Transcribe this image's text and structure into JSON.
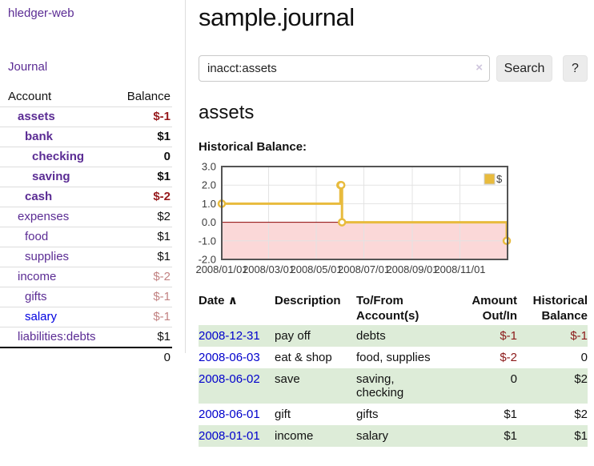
{
  "app": {
    "brand": "hledger-web"
  },
  "icons": {
    "sort_ascending": "∧",
    "clear_search": "×"
  },
  "colors": {
    "link_purple": "#5b2c94",
    "link_blue": "#0000e0",
    "register_date_blue": "#0000cc",
    "negative_strong": "#96191c",
    "negative_soft": "#c28282",
    "register_negative": "#8c1a1a",
    "row_alt_green": "#ddecd8",
    "chart_line_gold": "#e8bb3d",
    "chart_negative_region": "#fbd8d8",
    "chart_zero_line": "#8b0000"
  },
  "sidebar": {
    "nav_journal": "Journal",
    "accounts_table": {
      "headers": {
        "account": "Account",
        "balance": "Balance"
      },
      "rows": [
        {
          "name": "assets",
          "balance": "$-1",
          "level": 1
        },
        {
          "name": "bank",
          "balance": "$1",
          "level": 2
        },
        {
          "name": "checking",
          "balance": "0",
          "level": 3
        },
        {
          "name": "saving",
          "balance": "$1",
          "level": 3
        },
        {
          "name": "cash",
          "balance": "$-2",
          "level": 2
        },
        {
          "name": "expenses",
          "balance": "$2",
          "level": 1
        },
        {
          "name": "food",
          "balance": "$1",
          "level": 2
        },
        {
          "name": "supplies",
          "balance": "$1",
          "level": 2
        },
        {
          "name": "income",
          "balance": "$-2",
          "level": 1
        },
        {
          "name": "gifts",
          "balance": "$-1",
          "level": 2
        },
        {
          "name": "salary",
          "balance": "$-1",
          "level": 2
        },
        {
          "name": "liabilities:debts",
          "balance": "$1",
          "level": 1
        }
      ],
      "total": "0"
    }
  },
  "main": {
    "title": "sample.journal",
    "search": {
      "value": "inacct:assets",
      "search_button": "Search",
      "help_button": "?"
    },
    "account_heading": "assets",
    "section_label": "Historical Balance:",
    "register": {
      "headers": [
        "Date",
        "Description",
        "To/From Account(s)",
        "Amount Out/In",
        "Historical Balance"
      ],
      "rows": [
        {
          "date": "2008-12-31",
          "description": "pay off",
          "accounts": "debts",
          "amount": "$-1",
          "balance": "$-1"
        },
        {
          "date": "2008-06-03",
          "description": "eat & shop",
          "accounts": "food, supplies",
          "amount": "$-2",
          "balance": "0"
        },
        {
          "date": "2008-06-02",
          "description": "save",
          "accounts": "saving, checking",
          "amount": "0",
          "balance": "$2"
        },
        {
          "date": "2008-06-01",
          "description": "gift",
          "accounts": "gifts",
          "amount": "$1",
          "balance": "$2"
        },
        {
          "date": "2008-01-01",
          "description": "income",
          "accounts": "salary",
          "amount": "$1",
          "balance": "$1"
        }
      ]
    }
  },
  "chart_data": {
    "type": "line",
    "title": "Historical Balance",
    "series": [
      {
        "name": "$",
        "color": "#e8bb3d",
        "steps": true,
        "point_dates": [
          "2008-01-01",
          "2008-06-01",
          "2008-06-02",
          "2008-06-03",
          "2008-12-31"
        ],
        "points_x_days": [
          0,
          152,
          153,
          154,
          365
        ],
        "points_y": [
          1,
          2,
          2,
          0,
          -1
        ]
      }
    ],
    "x_ticks": [
      {
        "pos": 0,
        "label": "2008/01/01"
      },
      {
        "pos": 60,
        "label": "2008/03/01"
      },
      {
        "pos": 121,
        "label": "2008/05/01"
      },
      {
        "pos": 182,
        "label": "2008/07/01"
      },
      {
        "pos": 244,
        "label": "2008/09/01"
      },
      {
        "pos": 305,
        "label": "2008/11/01"
      }
    ],
    "y_ticks": [
      {
        "val": 3,
        "label": "3.0"
      },
      {
        "val": 2,
        "label": "2.0"
      },
      {
        "val": 1,
        "label": "1.0"
      },
      {
        "val": 0,
        "label": "0.0"
      },
      {
        "val": -1,
        "label": "-1.0"
      },
      {
        "val": -2,
        "label": "-2.0"
      }
    ],
    "xlim_days": [
      0,
      366
    ],
    "ylim": [
      -2,
      3
    ],
    "grid": true,
    "legend_position": "top-right",
    "negative_region_color": "#fbd8d8",
    "zero_line_color": "#8b0000"
  }
}
